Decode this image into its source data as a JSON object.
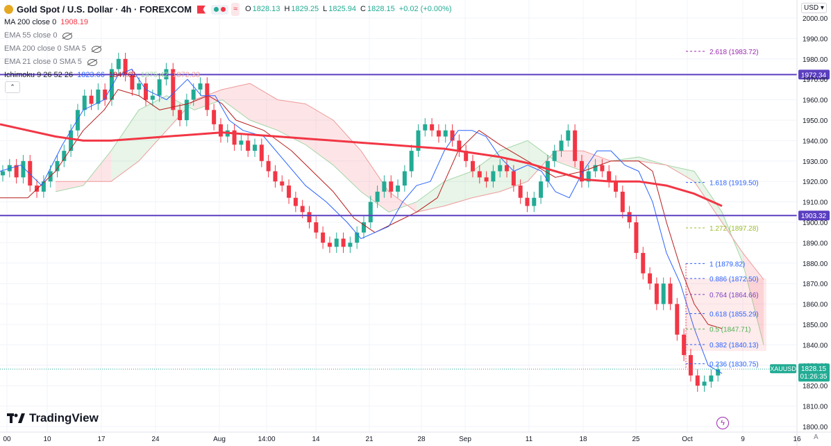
{
  "legend": {
    "symbol": "Gold Spot / U.S. Dollar · 4h · FOREXCOM",
    "ohlc": {
      "o_label": "O",
      "o": "1828.13",
      "h_label": "H",
      "h": "1829.25",
      "l_label": "L",
      "l": "1825.94",
      "c_label": "C",
      "c": "1828.15",
      "change": "+0.02 (+0.00%)"
    },
    "indicators": [
      {
        "label": "MA 200 close 0",
        "value": "1908.19",
        "color": "#f23645"
      },
      {
        "label": "EMA 55 close 0",
        "value": ""
      },
      {
        "label": "EMA 200 close 0 SMA 5",
        "value": ""
      },
      {
        "label": "EMA 21 close 0 SMA 5",
        "value": ""
      }
    ],
    "ichimoku": {
      "label": "Ichimoku 9 26 52 26",
      "v1": "1823.66",
      "v2": "1847.61",
      "v3": "1875.42",
      "v4": "1872.33"
    }
  },
  "currency": "USD",
  "logo_text": "TradingView",
  "auto_label": "A",
  "chart_data": {
    "type": "candlestick",
    "symbol": "XAUUSD",
    "interval": "4h",
    "y_axis": {
      "min": 1800,
      "max": 2000,
      "ticks": [
        1800,
        1810,
        1820,
        1830,
        1840,
        1850,
        1860,
        1870,
        1880,
        1890,
        1900,
        1910,
        1920,
        1930,
        1940,
        1950,
        1960,
        1970,
        1980,
        1990,
        2000
      ]
    },
    "x_axis": {
      "labels": [
        "00",
        "10",
        "17",
        "24",
        "Aug",
        "14:00",
        "14",
        "21",
        "28",
        "Sep",
        "11",
        "18",
        "25",
        "Oct",
        "9",
        "16"
      ]
    },
    "last_price": {
      "label": "XAUUSD",
      "value": "1828.15",
      "countdown": "01:26:35",
      "price": 1828.15
    },
    "horizontal_levels": [
      {
        "price": 1972.34,
        "label": "1972.34",
        "color": "#5b3fc1"
      },
      {
        "price": 1903.32,
        "label": "1903.32",
        "color": "#5b3fc1"
      }
    ],
    "fibonacci": [
      {
        "ratio": "2.618",
        "label": "2.618 (1983.72)",
        "price": 1983.72,
        "color": "#9c27b0"
      },
      {
        "ratio": "1.618",
        "label": "1.618 (1919.50)",
        "price": 1919.5,
        "color": "#2962ff"
      },
      {
        "ratio": "1.272",
        "label": "1.272 (1897.28)",
        "price": 1897.28,
        "color": "#9bbb2c"
      },
      {
        "ratio": "1",
        "label": "1 (1879.82)",
        "price": 1879.82,
        "color": "#2962ff"
      },
      {
        "ratio": "0.886",
        "label": "0.886 (1872.50)",
        "price": 1872.5,
        "color": "#2962ff"
      },
      {
        "ratio": "0.764",
        "label": "0.764 (1864.66)",
        "price": 1864.66,
        "color": "#7b3fc1"
      },
      {
        "ratio": "0.618",
        "label": "0.618 (1855.29)",
        "price": 1855.29,
        "color": "#2962ff"
      },
      {
        "ratio": "0.5",
        "label": "0.5 (1847.71)",
        "price": 1847.71,
        "color": "#4caf50"
      },
      {
        "ratio": "0.382",
        "label": "0.382 (1840.13)",
        "price": 1840.13,
        "color": "#2962ff"
      },
      {
        "ratio": "0.236",
        "label": "0.236 (1830.75)",
        "price": 1830.75,
        "color": "#2962ff"
      }
    ],
    "ma200": [
      [
        0,
        1948
      ],
      [
        40,
        1945
      ],
      [
        80,
        1942
      ],
      [
        120,
        1940
      ],
      [
        160,
        1940
      ],
      [
        200,
        1941
      ],
      [
        240,
        1942
      ],
      [
        280,
        1943
      ],
      [
        320,
        1944
      ],
      [
        360,
        1943
      ],
      [
        400,
        1942
      ],
      [
        440,
        1941
      ],
      [
        480,
        1940
      ],
      [
        520,
        1939
      ],
      [
        560,
        1938
      ],
      [
        600,
        1937
      ],
      [
        640,
        1936
      ],
      [
        680,
        1934
      ],
      [
        720,
        1932
      ],
      [
        760,
        1929
      ],
      [
        800,
        1925
      ],
      [
        840,
        1921
      ],
      [
        880,
        1920
      ],
      [
        920,
        1920
      ],
      [
        960,
        1918
      ],
      [
        1000,
        1914
      ],
      [
        1040,
        1908
      ]
    ],
    "tenkan": [
      [
        0,
        1925
      ],
      [
        30,
        1928
      ],
      [
        60,
        1918
      ],
      [
        90,
        1938
      ],
      [
        120,
        1955
      ],
      [
        150,
        1960
      ],
      [
        170,
        1972
      ],
      [
        190,
        1975
      ],
      [
        210,
        1965
      ],
      [
        240,
        1960
      ],
      [
        270,
        1970
      ],
      [
        290,
        1962
      ],
      [
        310,
        1962
      ],
      [
        330,
        1950
      ],
      [
        350,
        1945
      ],
      [
        380,
        1942
      ],
      [
        410,
        1930
      ],
      [
        440,
        1918
      ],
      [
        470,
        1910
      ],
      [
        500,
        1900
      ],
      [
        520,
        1892
      ],
      [
        540,
        1895
      ],
      [
        560,
        1898
      ],
      [
        580,
        1910
      ],
      [
        600,
        1918
      ],
      [
        620,
        1920
      ],
      [
        640,
        1935
      ],
      [
        660,
        1945
      ],
      [
        680,
        1945
      ],
      [
        700,
        1942
      ],
      [
        720,
        1932
      ],
      [
        740,
        1925
      ],
      [
        760,
        1928
      ],
      [
        780,
        1925
      ],
      [
        800,
        1915
      ],
      [
        820,
        1912
      ],
      [
        840,
        1925
      ],
      [
        860,
        1935
      ],
      [
        880,
        1935
      ],
      [
        900,
        1928
      ],
      [
        920,
        1925
      ],
      [
        940,
        1910
      ],
      [
        960,
        1885
      ],
      [
        980,
        1870
      ],
      [
        1000,
        1848
      ],
      [
        1020,
        1830
      ],
      [
        1040,
        1826
      ]
    ],
    "kijun": [
      [
        0,
        1912
      ],
      [
        40,
        1912
      ],
      [
        80,
        1925
      ],
      [
        100,
        1935
      ],
      [
        120,
        1945
      ],
      [
        150,
        1955
      ],
      [
        170,
        1965
      ],
      [
        200,
        1962
      ],
      [
        230,
        1955
      ],
      [
        270,
        1958
      ],
      [
        300,
        1962
      ],
      [
        320,
        1958
      ],
      [
        340,
        1950
      ],
      [
        380,
        1945
      ],
      [
        420,
        1935
      ],
      [
        450,
        1925
      ],
      [
        480,
        1915
      ],
      [
        510,
        1902
      ],
      [
        540,
        1895
      ],
      [
        570,
        1900
      ],
      [
        600,
        1905
      ],
      [
        630,
        1912
      ],
      [
        660,
        1935
      ],
      [
        690,
        1945
      ],
      [
        720,
        1938
      ],
      [
        760,
        1930
      ],
      [
        800,
        1922
      ],
      [
        840,
        1925
      ],
      [
        880,
        1930
      ],
      [
        920,
        1930
      ],
      [
        940,
        1925
      ],
      [
        960,
        1900
      ],
      [
        980,
        1878
      ],
      [
        1000,
        1860
      ],
      [
        1020,
        1850
      ],
      [
        1040,
        1848
      ]
    ],
    "cloud_a": [
      [
        80,
        1915
      ],
      [
        120,
        1918
      ],
      [
        160,
        1935
      ],
      [
        200,
        1955
      ],
      [
        240,
        1962
      ],
      [
        280,
        1955
      ],
      [
        320,
        1960
      ],
      [
        360,
        1950
      ],
      [
        400,
        1945
      ],
      [
        440,
        1938
      ],
      [
        480,
        1928
      ],
      [
        520,
        1915
      ],
      [
        560,
        1905
      ],
      [
        600,
        1910
      ],
      [
        640,
        1920
      ],
      [
        680,
        1925
      ],
      [
        720,
        1935
      ],
      [
        760,
        1940
      ],
      [
        800,
        1930
      ],
      [
        840,
        1925
      ],
      [
        880,
        1930
      ],
      [
        920,
        1932
      ],
      [
        960,
        1928
      ],
      [
        1000,
        1925
      ],
      [
        1040,
        1905
      ],
      [
        1070,
        1880
      ],
      [
        1100,
        1840
      ]
    ],
    "cloud_b": [
      [
        80,
        1920
      ],
      [
        120,
        1920
      ],
      [
        160,
        1920
      ],
      [
        200,
        1930
      ],
      [
        240,
        1945
      ],
      [
        280,
        1960
      ],
      [
        320,
        1965
      ],
      [
        360,
        1968
      ],
      [
        400,
        1960
      ],
      [
        440,
        1958
      ],
      [
        480,
        1950
      ],
      [
        520,
        1935
      ],
      [
        560,
        1915
      ],
      [
        600,
        1905
      ],
      [
        640,
        1908
      ],
      [
        680,
        1912
      ],
      [
        720,
        1915
      ],
      [
        760,
        1920
      ],
      [
        800,
        1935
      ],
      [
        840,
        1935
      ],
      [
        880,
        1930
      ],
      [
        920,
        1930
      ],
      [
        960,
        1928
      ],
      [
        1000,
        1920
      ],
      [
        1040,
        1900
      ],
      [
        1070,
        1885
      ],
      [
        1100,
        1872
      ]
    ],
    "candles": [
      [
        1,
        1925
      ],
      [
        2,
        1928
      ],
      [
        3,
        1922
      ],
      [
        4,
        1930
      ],
      [
        5,
        1918
      ],
      [
        6,
        1915
      ],
      [
        7,
        1920
      ],
      [
        8,
        1925
      ],
      [
        9,
        1930
      ],
      [
        10,
        1935
      ],
      [
        11,
        1945
      ],
      [
        12,
        1955
      ],
      [
        13,
        1962
      ],
      [
        14,
        1958
      ],
      [
        15,
        1965
      ],
      [
        16,
        1960
      ],
      [
        17,
        1975
      ],
      [
        18,
        1980
      ],
      [
        19,
        1972
      ],
      [
        20,
        1965
      ],
      [
        21,
        1968
      ],
      [
        22,
        1960
      ],
      [
        23,
        1962
      ],
      [
        24,
        1970
      ],
      [
        25,
        1975
      ],
      [
        26,
        1955
      ],
      [
        27,
        1950
      ],
      [
        28,
        1960
      ],
      [
        29,
        1965
      ],
      [
        30,
        1968
      ],
      [
        31,
        1955
      ],
      [
        32,
        1948
      ],
      [
        33,
        1942
      ],
      [
        34,
        1945
      ],
      [
        35,
        1938
      ],
      [
        36,
        1940
      ],
      [
        37,
        1935
      ],
      [
        38,
        1938
      ],
      [
        39,
        1930
      ],
      [
        40,
        1925
      ],
      [
        41,
        1920
      ],
      [
        42,
        1918
      ],
      [
        43,
        1912
      ],
      [
        44,
        1908
      ],
      [
        45,
        1905
      ],
      [
        46,
        1900
      ],
      [
        47,
        1895
      ],
      [
        48,
        1890
      ],
      [
        49,
        1888
      ],
      [
        50,
        1892
      ],
      [
        51,
        1888
      ],
      [
        52,
        1890
      ],
      [
        53,
        1895
      ],
      [
        54,
        1900
      ],
      [
        55,
        1910
      ],
      [
        56,
        1915
      ],
      [
        57,
        1920
      ],
      [
        58,
        1915
      ],
      [
        59,
        1918
      ],
      [
        60,
        1925
      ],
      [
        61,
        1935
      ],
      [
        62,
        1945
      ],
      [
        63,
        1948
      ],
      [
        64,
        1945
      ],
      [
        65,
        1942
      ],
      [
        66,
        1945
      ],
      [
        67,
        1940
      ],
      [
        68,
        1935
      ],
      [
        69,
        1930
      ],
      [
        70,
        1925
      ],
      [
        71,
        1922
      ],
      [
        72,
        1920
      ],
      [
        73,
        1925
      ],
      [
        74,
        1928
      ],
      [
        75,
        1925
      ],
      [
        76,
        1918
      ],
      [
        77,
        1912
      ],
      [
        78,
        1908
      ],
      [
        79,
        1912
      ],
      [
        80,
        1920
      ],
      [
        81,
        1930
      ],
      [
        82,
        1935
      ],
      [
        83,
        1940
      ],
      [
        84,
        1945
      ],
      [
        85,
        1930
      ],
      [
        86,
        1920
      ],
      [
        87,
        1925
      ],
      [
        88,
        1928
      ],
      [
        89,
        1925
      ],
      [
        90,
        1920
      ],
      [
        91,
        1915
      ],
      [
        92,
        1905
      ],
      [
        93,
        1900
      ],
      [
        94,
        1885
      ],
      [
        95,
        1875
      ],
      [
        96,
        1870
      ],
      [
        97,
        1860
      ],
      [
        98,
        1870
      ],
      [
        99,
        1860
      ],
      [
        100,
        1845
      ],
      [
        101,
        1835
      ],
      [
        102,
        1825
      ],
      [
        103,
        1820
      ],
      [
        104,
        1822
      ],
      [
        105,
        1825
      ],
      [
        106,
        1828
      ]
    ]
  }
}
